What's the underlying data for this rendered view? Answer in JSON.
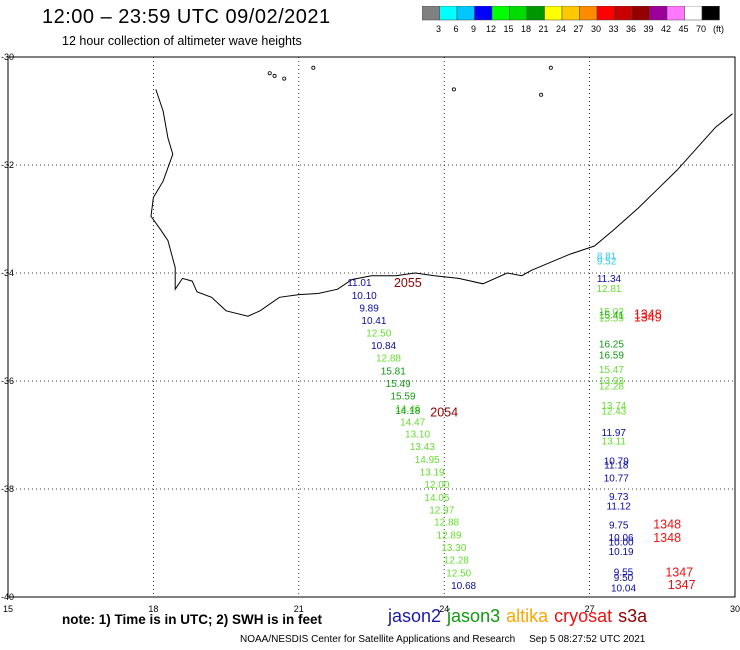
{
  "header": {
    "title": "12:00 – 23:59 UTC 09/02/2021",
    "subtitle": "12 hour collection of altimeter wave heights"
  },
  "colorbar": {
    "colors": [
      "#808080",
      "#00ffff",
      "#00c8ff",
      "#0000ff",
      "#00ff00",
      "#00dc00",
      "#009600",
      "#ffff00",
      "#ffc800",
      "#ff8c00",
      "#ff0000",
      "#c80000",
      "#960000",
      "#9b009b",
      "#ff78ff",
      "#ffffff",
      "#000000"
    ],
    "labels": [
      "3",
      "6",
      "9",
      "12",
      "15",
      "18",
      "21",
      "24",
      "27",
      "30",
      "33",
      "36",
      "39",
      "42",
      "45",
      "70",
      "(ft)"
    ]
  },
  "axes": {
    "x_ticks": [
      "15",
      "18",
      "21",
      "24",
      "27",
      "30"
    ],
    "y_ticks": [
      "-30",
      "-32",
      "-34",
      "-36",
      "-38",
      "-40"
    ]
  },
  "map_extent": {
    "lon": [
      15,
      30
    ],
    "lat": [
      -40,
      -30
    ]
  },
  "tracks": [
    {
      "color": "#0a0a9c",
      "text": "11.01",
      "lon": 22.25,
      "lat": -34.24
    },
    {
      "color": "#0a0a9c",
      "text": "10.10",
      "lon": 22.35,
      "lat": -34.48
    },
    {
      "color": "#0a0a9c",
      "text": "9.89",
      "lon": 22.45,
      "lat": -34.71
    },
    {
      "color": "#0a0a9c",
      "text": "10.41",
      "lon": 22.55,
      "lat": -34.94
    },
    {
      "color": "#66dd33",
      "text": "12.50",
      "lon": 22.65,
      "lat": -35.18
    },
    {
      "color": "#0a0a9c",
      "text": "10.84",
      "lon": 22.75,
      "lat": -35.41
    },
    {
      "color": "#66dd33",
      "text": "12.88",
      "lon": 22.85,
      "lat": -35.64
    },
    {
      "color": "#119911",
      "text": "15.81",
      "lon": 22.95,
      "lat": -35.88
    },
    {
      "color": "#119911",
      "text": "15.49",
      "lon": 23.05,
      "lat": -36.11
    },
    {
      "color": "#119911",
      "text": "15.59",
      "lon": 23.15,
      "lat": -36.34
    },
    {
      "color": "#66dd33",
      "text": "14.46",
      "lon": 23.25,
      "lat": -36.57
    },
    {
      "color": "#119911",
      "text": "14.18",
      "lon": 23.25,
      "lat": -36.61
    },
    {
      "color": "#66dd33",
      "text": "14.47",
      "lon": 23.35,
      "lat": -36.82
    },
    {
      "color": "#66dd33",
      "text": "13.10",
      "lon": 23.45,
      "lat": -37.05
    },
    {
      "color": "#66dd33",
      "text": "13.43",
      "lon": 23.55,
      "lat": -37.28
    },
    {
      "color": "#66dd33",
      "text": "14.95",
      "lon": 23.65,
      "lat": -37.52
    },
    {
      "color": "#66dd33",
      "text": "13.19",
      "lon": 23.75,
      "lat": -37.75
    },
    {
      "color": "#66dd33",
      "text": "12.00",
      "lon": 23.85,
      "lat": -37.98
    },
    {
      "color": "#66dd33",
      "text": "14.05",
      "lon": 23.85,
      "lat": -38.22
    },
    {
      "color": "#66dd33",
      "text": "12.97",
      "lon": 23.95,
      "lat": -38.45
    },
    {
      "color": "#66dd33",
      "text": "12.88",
      "lon": 24.05,
      "lat": -38.68
    },
    {
      "color": "#66dd33",
      "text": "12.89",
      "lon": 24.1,
      "lat": -38.92
    },
    {
      "color": "#66dd33",
      "text": "13.30",
      "lon": 24.2,
      "lat": -39.15
    },
    {
      "color": "#66dd33",
      "text": "12.28",
      "lon": 24.25,
      "lat": -39.38
    },
    {
      "color": "#66dd33",
      "text": "12.50",
      "lon": 24.3,
      "lat": -39.62
    },
    {
      "color": "#0a0a9c",
      "text": "10.68",
      "lon": 24.4,
      "lat": -39.85
    },
    {
      "color": "#33ccee",
      "text": "8.81",
      "lon": 27.35,
      "lat": -33.75
    },
    {
      "color": "#33ccee",
      "text": "9.52",
      "lon": 27.35,
      "lat": -33.84
    },
    {
      "color": "#0a0a9c",
      "text": "11.34",
      "lon": 27.4,
      "lat": -34.17
    },
    {
      "color": "#66dd33",
      "text": "12.81",
      "lon": 27.4,
      "lat": -34.35
    },
    {
      "color": "#66dd33",
      "text": "15.02",
      "lon": 27.45,
      "lat": -34.78
    },
    {
      "color": "#119911",
      "text": "15.41",
      "lon": 27.45,
      "lat": -34.84
    },
    {
      "color": "#66dd33",
      "text": "15.59",
      "lon": 27.45,
      "lat": -34.9
    },
    {
      "color": "#119911",
      "text": "16.25",
      "lon": 27.45,
      "lat": -35.38
    },
    {
      "color": "#119911",
      "text": "16.59",
      "lon": 27.45,
      "lat": -35.58
    },
    {
      "color": "#66dd33",
      "text": "15.47",
      "lon": 27.45,
      "lat": -35.85
    },
    {
      "color": "#66dd33",
      "text": "13.93",
      "lon": 27.45,
      "lat": -36.06
    },
    {
      "color": "#66dd33",
      "text": "12.28",
      "lon": 27.45,
      "lat": -36.16
    },
    {
      "color": "#66dd33",
      "text": "13.74",
      "lon": 27.5,
      "lat": -36.52
    },
    {
      "color": "#66dd33",
      "text": "12.43",
      "lon": 27.5,
      "lat": -36.62
    },
    {
      "color": "#0a0a9c",
      "text": "11.97",
      "lon": 27.5,
      "lat": -37.02
    },
    {
      "color": "#66dd33",
      "text": "13.11",
      "lon": 27.5,
      "lat": -37.18
    },
    {
      "color": "#0a0a9c",
      "text": "10.79",
      "lon": 27.55,
      "lat": -37.55
    },
    {
      "color": "#0a0a9c",
      "text": "11.18",
      "lon": 27.55,
      "lat": -37.62
    },
    {
      "color": "#0a0a9c",
      "text": "10.77",
      "lon": 27.55,
      "lat": -37.86
    },
    {
      "color": "#0a0a9c",
      "text": "9.73",
      "lon": 27.6,
      "lat": -38.2
    },
    {
      "color": "#0a0a9c",
      "text": "11.12",
      "lon": 27.6,
      "lat": -38.38
    },
    {
      "color": "#0a0a9c",
      "text": "9.75",
      "lon": 27.6,
      "lat": -38.73
    },
    {
      "color": "#0a0a9c",
      "text": "10.06",
      "lon": 27.65,
      "lat": -38.96
    },
    {
      "color": "#0a0a9c",
      "text": "10.00",
      "lon": 27.65,
      "lat": -39.05
    },
    {
      "color": "#0a0a9c",
      "text": "10.19",
      "lon": 27.65,
      "lat": -39.22
    },
    {
      "color": "#0a0a9c",
      "text": "9.55",
      "lon": 27.7,
      "lat": -39.6
    },
    {
      "color": "#0a0a9c",
      "text": "9.50",
      "lon": 27.7,
      "lat": -39.7
    },
    {
      "color": "#0a0a9c",
      "text": "10.04",
      "lon": 27.7,
      "lat": -39.9
    }
  ],
  "pass_ids": [
    {
      "color": "#8b0000",
      "text": "2055",
      "lon": 23.25,
      "lat": -34.26
    },
    {
      "color": "#8b0000",
      "text": "2054",
      "lon": 24.0,
      "lat": -36.66
    },
    {
      "color": "#ee1111",
      "text": "1348",
      "lon": 28.2,
      "lat": -34.84
    },
    {
      "color": "#ee1111",
      "text": "1349",
      "lon": 28.2,
      "lat": -34.9
    },
    {
      "color": "#ee1111",
      "text": "1348",
      "lon": 28.6,
      "lat": -38.73
    },
    {
      "color": "#ee1111",
      "text": "1348",
      "lon": 28.6,
      "lat": -38.98
    },
    {
      "color": "#ee1111",
      "text": "1347",
      "lon": 28.85,
      "lat": -39.62
    },
    {
      "color": "#ee1111",
      "text": "1347",
      "lon": 28.9,
      "lat": -39.85
    }
  ],
  "footer": {
    "note": "note:  1) Time is in UTC; 2) SWH is in feet",
    "legend": [
      {
        "label": "jason2",
        "color": "#1a1aa6"
      },
      {
        "label": "jason3",
        "color": "#119911"
      },
      {
        "label": "altika",
        "color": "#ffa500"
      },
      {
        "label": "cryosat",
        "color": "#ee1111"
      },
      {
        "label": "s3a",
        "color": "#8b0000"
      }
    ],
    "credit": "NOAA/NESDIS Center for Satellite Applications and Research",
    "timestamp": "Sep  5 08:27:52 UTC 2021"
  }
}
